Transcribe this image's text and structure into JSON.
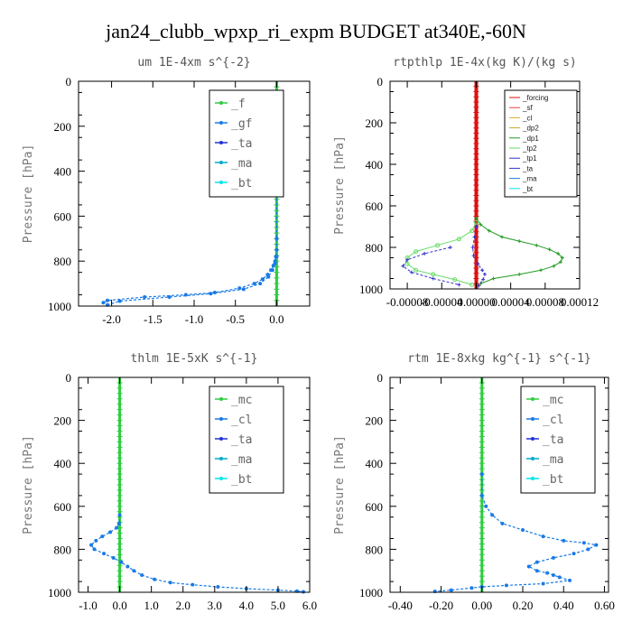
{
  "title": "jan24_clubb_wpxp_ri_expm  BUDGET at340E,-60N",
  "colors": {
    "profile_blue": "#1a7ae6",
    "zero_green": "#2ecc40",
    "forcing_red": "#dd1111",
    "tp2_light_green": "#66dd66",
    "tp1_blue": "#3333cc",
    "dp1_green": "#229922",
    "axis": "#000000"
  },
  "chart_data": [
    {
      "type": "line",
      "title": "um   1E-4xm s^{-2}",
      "ylabel": "Pressure [hPa]",
      "xlim": [
        -2.4,
        0.4
      ],
      "ylim": [
        1000,
        0
      ],
      "xticks": [
        "-2.0",
        "-1.5",
        "-1.0",
        "-0.5",
        "0.0"
      ],
      "xtick_values": [
        -2.0,
        -1.5,
        -1.0,
        -0.5,
        0.0
      ],
      "yticks": [
        "0",
        "200",
        "400",
        "600",
        "800",
        "1000"
      ],
      "ytick_values": [
        0,
        200,
        400,
        600,
        800,
        1000
      ],
      "legend": [
        "_f",
        "_gf",
        "_ta",
        "_ma",
        "_bt"
      ],
      "legend_style": "large",
      "legend_position": "top-right",
      "series": [
        {
          "name": "_f",
          "style": "zero",
          "x": [
            0,
            0
          ],
          "y": [
            0,
            1000
          ]
        },
        {
          "name": "_ta",
          "style": "profile",
          "x": [
            0.0,
            0.0,
            0.0,
            -0.01,
            -0.02,
            -0.04,
            -0.07,
            -0.11,
            -0.17,
            -0.27,
            -0.45,
            -0.75,
            -1.1,
            -1.6,
            -2.05,
            -2.1
          ],
          "y": [
            500,
            700,
            750,
            780,
            800,
            820,
            840,
            860,
            880,
            900,
            920,
            940,
            950,
            960,
            975,
            985
          ]
        },
        {
          "name": "_ma",
          "style": "profile",
          "x": [
            0.0,
            -0.02,
            -0.05,
            -0.1,
            -0.2,
            -0.4,
            -0.8,
            -1.3,
            -1.9,
            -2.05
          ],
          "y": [
            780,
            810,
            840,
            870,
            900,
            925,
            945,
            960,
            978,
            995
          ]
        }
      ]
    },
    {
      "type": "line",
      "title": "rtpthlp  1E-4x(kg K)/(kg s)",
      "ylabel": "Pressure [hPa]",
      "xlim": [
        -0.0001,
        0.00012
      ],
      "ylim": [
        1000,
        0
      ],
      "xticks": [
        "-0.00008",
        "-0.00004",
        "0.00000",
        "0.00004",
        "0.00008",
        "0.00012"
      ],
      "xtick_values": [
        -8e-05,
        -4e-05,
        0.0,
        4e-05,
        8e-05,
        0.00012
      ],
      "yticks": [
        "0",
        "200",
        "400",
        "600",
        "800",
        "1000"
      ],
      "ytick_values": [
        0,
        200,
        400,
        600,
        800,
        1000
      ],
      "legend": [
        "_forcing",
        "_sf",
        "_cl",
        "_dp2",
        "_dp1",
        "_tp2",
        "_tp1",
        "_ta",
        "_ma",
        "_bt"
      ],
      "legend_style": "small",
      "legend_position": "top-right",
      "series": [
        {
          "name": "_forcing",
          "style": "forcing",
          "x": [
            0,
            0
          ],
          "y": [
            0,
            1000
          ]
        },
        {
          "name": "_dp1",
          "style": "dp1",
          "x": [
            0.0,
            5e-06,
            1.5e-05,
            3e-05,
            5e-05,
            7e-05,
            8.5e-05,
            9.5e-05,
            0.0001,
            9.8e-05,
            9e-05,
            7.5e-05,
            5e-05,
            2e-05,
            5e-06
          ],
          "y": [
            660,
            690,
            720,
            750,
            770,
            790,
            810,
            830,
            850,
            870,
            890,
            910,
            930,
            950,
            975
          ]
        },
        {
          "name": "_tp2",
          "style": "tp2",
          "x": [
            0.0,
            -5e-06,
            -2e-05,
            -4.5e-05,
            -7e-05,
            -8e-05,
            -8e-05,
            -7e-05,
            -5e-05,
            -2.5e-05,
            -5e-06
          ],
          "y": [
            680,
            720,
            760,
            790,
            820,
            850,
            880,
            910,
            930,
            955,
            980
          ]
        },
        {
          "name": "_tp1",
          "style": "tp1",
          "x": [
            0.0,
            -2e-06,
            -4e-06,
            -3e-06,
            2e-06,
            7e-06,
            1e-05,
            8e-06,
            3e-06
          ],
          "y": [
            700,
            750,
            800,
            840,
            880,
            910,
            930,
            955,
            985
          ]
        },
        {
          "name": "_ta",
          "style": "tp1",
          "x": [
            -3e-05,
            -6e-05,
            -8e-05,
            -8.5e-05,
            -7.5e-05,
            -5e-05,
            -2e-05
          ],
          "y": [
            800,
            830,
            860,
            890,
            920,
            950,
            980
          ]
        }
      ]
    },
    {
      "type": "line",
      "title": "thlm   1E-5xK s^{-1}",
      "ylabel": "Pressure [hPa]",
      "xlim": [
        -1.3,
        6.0
      ],
      "ylim": [
        1000,
        0
      ],
      "xticks": [
        "-1.0",
        "0.0",
        "1.0",
        "2.0",
        "3.0",
        "4.0",
        "5.0",
        "6.0"
      ],
      "xtick_values": [
        -1.0,
        0.0,
        1.0,
        2.0,
        3.0,
        4.0,
        5.0,
        6.0
      ],
      "yticks": [
        "0",
        "200",
        "400",
        "600",
        "800",
        "1000"
      ],
      "ytick_values": [
        0,
        200,
        400,
        600,
        800,
        1000
      ],
      "legend": [
        "_mc",
        "_cl",
        "_ta",
        "_ma",
        "_bt"
      ],
      "legend_style": "large",
      "legend_position": "top-right",
      "series": [
        {
          "name": "_mc",
          "style": "zero",
          "x": [
            0,
            0
          ],
          "y": [
            0,
            1000
          ]
        },
        {
          "name": "_cl",
          "style": "profile",
          "x": [
            0.0,
            -0.02,
            -0.1,
            -0.3,
            -0.55,
            -0.75,
            -0.9,
            -0.8,
            -0.5,
            -0.2,
            0.05,
            0.25,
            0.45,
            0.7,
            1.1,
            1.6,
            2.3,
            3.1,
            4.0,
            5.0,
            5.6,
            5.8
          ],
          "y": [
            640,
            680,
            700,
            720,
            740,
            760,
            780,
            800,
            820,
            840,
            860,
            880,
            900,
            920,
            940,
            955,
            965,
            975,
            983,
            990,
            995,
            998
          ]
        }
      ]
    },
    {
      "type": "line",
      "title": "rtm   1E-8xkg kg^{-1} s^{-1}",
      "ylabel": "Pressure [hPa]",
      "xlim": [
        -0.45,
        0.62
      ],
      "ylim": [
        1000,
        0
      ],
      "xticks": [
        "-0.40",
        "-0.20",
        "0.00",
        "0.20",
        "0.40",
        "0.60"
      ],
      "xtick_values": [
        -0.4,
        -0.2,
        0.0,
        0.2,
        0.4,
        0.6
      ],
      "yticks": [
        "0",
        "200",
        "400",
        "600",
        "800",
        "1000"
      ],
      "ytick_values": [
        0,
        200,
        400,
        600,
        800,
        1000
      ],
      "legend": [
        "_mc",
        "_cl",
        "_ta",
        "_ma",
        "_bt"
      ],
      "legend_style": "large",
      "legend_position": "top-right",
      "series": [
        {
          "name": "_mc",
          "style": "zero",
          "x": [
            0,
            0
          ],
          "y": [
            0,
            1000
          ]
        },
        {
          "name": "_cl",
          "style": "profile",
          "x": [
            0.0,
            0.0,
            0.02,
            0.05,
            0.1,
            0.2,
            0.3,
            0.4,
            0.5,
            0.56,
            0.52,
            0.45,
            0.35,
            0.27,
            0.23,
            0.27,
            0.32,
            0.35,
            0.38,
            0.43,
            0.3,
            0.12,
            0.0,
            -0.05,
            -0.15,
            -0.23
          ],
          "y": [
            450,
            550,
            600,
            640,
            680,
            710,
            740,
            760,
            770,
            780,
            800,
            820,
            840,
            860,
            880,
            900,
            910,
            920,
            930,
            945,
            960,
            968,
            975,
            980,
            990,
            996
          ]
        }
      ]
    }
  ]
}
